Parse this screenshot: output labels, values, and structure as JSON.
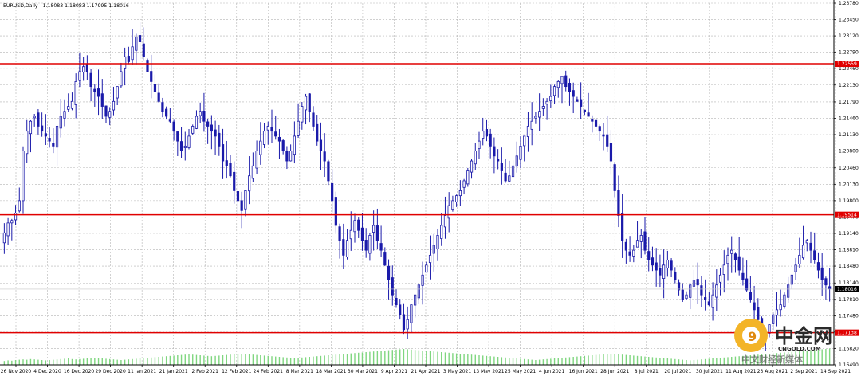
{
  "header": {
    "symbol": "EURUSD,Daily",
    "ohlc": "1.18083 1.18083 1.17995 1.18016"
  },
  "colors": {
    "background": "#ffffff",
    "grid": "#b4b4b4",
    "candle": "#1a1aaa",
    "volume": "#7fd67f",
    "level_line": "#e00000",
    "level_badge": "#e00000",
    "last_price_badge": "#000000",
    "watermark": "#e8a317"
  },
  "watermark": {
    "brand": "中金网",
    "domain": "CNGOLD.COM",
    "slogan": "中文财经新媒体"
  },
  "chart_data": {
    "type": "candlestick",
    "symbol": "EURUSD",
    "timeframe": "Daily",
    "ylim": [
      1.1649,
      1.2378
    ],
    "grid": true,
    "y_ticks": [
      "1.23780",
      "1.23450",
      "1.23120",
      "1.22790",
      "1.22460",
      "1.22130",
      "1.21790",
      "1.21460",
      "1.21130",
      "1.20800",
      "1.20460",
      "1.20130",
      "1.19800",
      "1.19470",
      "1.19140",
      "1.18810",
      "1.18480",
      "1.18140",
      "1.17810",
      "1.17480",
      "1.17150",
      "1.16820",
      "1.16490"
    ],
    "x_labels": [
      "26 Nov 2020",
      "4 Dec 2020",
      "16 Dec 2020",
      "29 Dec 2020",
      "11 Jan 2021",
      "21 Jan 2021",
      "2 Feb 2021",
      "12 Feb 2021",
      "24 Feb 2021",
      "8 Mar 2021",
      "18 Mar 2021",
      "30 Mar 2021",
      "9 Apr 2021",
      "21 Apr 2021",
      "3 May 2021",
      "13 May 2021",
      "25 May 2021",
      "4 Jun 2021",
      "16 Jun 2021",
      "28 Jun 2021",
      "8 Jul 2021",
      "20 Jul 2021",
      "30 Jul 2021",
      "11 Aug 2021",
      "23 Aug 2021",
      "2 Sep 2021",
      "14 Sep 2021"
    ],
    "horizontal_levels": [
      {
        "price": 1.22559,
        "label": "1.22559"
      },
      {
        "price": 1.19514,
        "label": "1.19514"
      },
      {
        "price": 1.17138,
        "label": "1.17138"
      }
    ],
    "last_price": {
      "price": 1.18016,
      "label": "1.18016"
    },
    "close_path": [
      1.1915,
      1.1935,
      1.194,
      1.1955,
      1.198,
      1.208,
      1.212,
      1.214,
      1.215,
      1.213,
      1.212,
      1.211,
      1.21,
      1.209,
      1.213,
      1.215,
      1.216,
      1.217,
      1.218,
      1.222,
      1.224,
      1.225,
      1.224,
      1.221,
      1.22,
      1.219,
      1.217,
      1.215,
      1.216,
      1.218,
      1.221,
      1.224,
      1.227,
      1.226,
      1.229,
      1.231,
      1.23,
      1.227,
      1.224,
      1.222,
      1.22,
      1.218,
      1.216,
      1.215,
      1.214,
      1.212,
      1.21,
      1.208,
      1.209,
      1.211,
      1.213,
      1.215,
      1.216,
      1.214,
      1.213,
      1.212,
      1.211,
      1.209,
      1.206,
      1.205,
      1.203,
      1.2,
      1.198,
      1.196,
      1.2,
      1.203,
      1.205,
      1.208,
      1.21,
      1.212,
      1.213,
      1.212,
      1.211,
      1.21,
      1.208,
      1.206,
      1.208,
      1.211,
      1.214,
      1.217,
      1.219,
      1.216,
      1.213,
      1.21,
      1.208,
      1.206,
      1.202,
      1.198,
      1.193,
      1.19,
      1.187,
      1.19,
      1.192,
      1.194,
      1.192,
      1.19,
      1.188,
      1.191,
      1.193,
      1.19,
      1.188,
      1.185,
      1.182,
      1.179,
      1.177,
      1.175,
      1.172,
      1.174,
      1.177,
      1.179,
      1.181,
      1.183,
      1.185,
      1.187,
      1.189,
      1.191,
      1.193,
      1.195,
      1.197,
      1.198,
      1.199,
      1.2,
      1.202,
      1.204,
      1.206,
      1.208,
      1.21,
      1.212,
      1.211,
      1.209,
      1.207,
      1.206,
      1.204,
      1.202,
      1.203,
      1.205,
      1.207,
      1.209,
      1.211,
      1.213,
      1.214,
      1.215,
      1.216,
      1.217,
      1.218,
      1.219,
      1.221,
      1.222,
      1.223,
      1.221,
      1.22,
      1.219,
      1.218,
      1.217,
      1.216,
      1.215,
      1.214,
      1.213,
      1.212,
      1.211,
      1.209,
      1.206,
      1.2,
      1.195,
      1.19,
      1.188,
      1.187,
      1.188,
      1.19,
      1.191,
      1.188,
      1.186,
      1.185,
      1.184,
      1.183,
      1.185,
      1.186,
      1.184,
      1.182,
      1.18,
      1.178,
      1.179,
      1.181,
      1.182,
      1.181,
      1.179,
      1.178,
      1.177,
      1.179,
      1.181,
      1.183,
      1.185,
      1.187,
      1.188,
      1.186,
      1.184,
      1.182,
      1.18,
      1.178,
      1.176,
      1.174,
      1.172,
      1.171,
      1.173,
      1.175,
      1.176,
      1.177,
      1.179,
      1.181,
      1.183,
      1.185,
      1.187,
      1.189,
      1.19,
      1.188,
      1.186,
      1.184,
      1.182,
      1.181,
      1.1802
    ],
    "volume_level": [
      0.12,
      0.14,
      0.13,
      0.15,
      0.16,
      0.17,
      0.16,
      0.18,
      0.17,
      0.16,
      0.15,
      0.14,
      0.15,
      0.16,
      0.17,
      0.18,
      0.19,
      0.2,
      0.18,
      0.17,
      0.18,
      0.19,
      0.2,
      0.21,
      0.22,
      0.21,
      0.2,
      0.19,
      0.18,
      0.17,
      0.16,
      0.15,
      0.16,
      0.17,
      0.18,
      0.19,
      0.2,
      0.21,
      0.22,
      0.23,
      0.24,
      0.25,
      0.26,
      0.27,
      0.28,
      0.29,
      0.3,
      0.31,
      0.32,
      0.33,
      0.32,
      0.31,
      0.3,
      0.29,
      0.28,
      0.27,
      0.28,
      0.29,
      0.3,
      0.31,
      0.32,
      0.33,
      0.34,
      0.35,
      0.34,
      0.33,
      0.32,
      0.31,
      0.3,
      0.29,
      0.28,
      0.27,
      0.26,
      0.25,
      0.24,
      0.23,
      0.22,
      0.21,
      0.22,
      0.23,
      0.24,
      0.25,
      0.26,
      0.27,
      0.28,
      0.29,
      0.3,
      0.31,
      0.32,
      0.33,
      0.34,
      0.35,
      0.36,
      0.37,
      0.38,
      0.39,
      0.4,
      0.41,
      0.42,
      0.43,
      0.44,
      0.45,
      0.46,
      0.47,
      0.48,
      0.49,
      0.5,
      0.49,
      0.48,
      0.47,
      0.46,
      0.45,
      0.44,
      0.43,
      0.42,
      0.41,
      0.4,
      0.39,
      0.38,
      0.37,
      0.36,
      0.35,
      0.34,
      0.33,
      0.32,
      0.31,
      0.3,
      0.29,
      0.28,
      0.27,
      0.26,
      0.25,
      0.24,
      0.23,
      0.22,
      0.21,
      0.2,
      0.19,
      0.18,
      0.17,
      0.16,
      0.15,
      0.16,
      0.17,
      0.18,
      0.19,
      0.2,
      0.21,
      0.22,
      0.23,
      0.24,
      0.25,
      0.26,
      0.27,
      0.28,
      0.29,
      0.3,
      0.31,
      0.32,
      0.33,
      0.34,
      0.35,
      0.34,
      0.33,
      0.32,
      0.31,
      0.3,
      0.29,
      0.28,
      0.27,
      0.26,
      0.25,
      0.24,
      0.23,
      0.22,
      0.21,
      0.2,
      0.19,
      0.18,
      0.17,
      0.16,
      0.15,
      0.14,
      0.15,
      0.16,
      0.17,
      0.18,
      0.19,
      0.2,
      0.21,
      0.22,
      0.23,
      0.24,
      0.25,
      0.26,
      0.27,
      0.28,
      0.29,
      0.3,
      0.31,
      0.32,
      0.33,
      0.34,
      0.35,
      0.36,
      0.37,
      0.38,
      0.39,
      0.4,
      0.41,
      0.42,
      0.43,
      0.44,
      0.45,
      0.46,
      0.47,
      0.48,
      0.49,
      0.5,
      0.51,
      0.52,
      0.53,
      0.54,
      0.55
    ]
  }
}
